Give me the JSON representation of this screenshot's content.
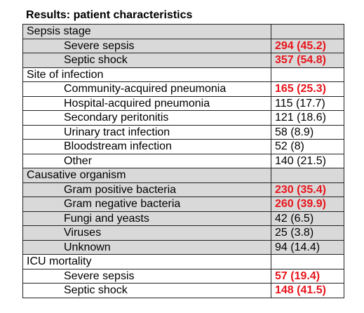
{
  "title": "Results: patient characteristics",
  "colors": {
    "highlight": "#e8141b",
    "shade": "#d9d9d9"
  },
  "sections": [
    {
      "label": "Sepsis stage",
      "rows": [
        {
          "label": "Severe sepsis",
          "value": "294 (45.2)",
          "highlight": true
        },
        {
          "label": "Septic shock",
          "value": "357 (54.8)",
          "highlight": true
        }
      ]
    },
    {
      "label": "Site of infection",
      "rows": [
        {
          "label": "Community-acquired pneumonia",
          "value": "165 (25.3)",
          "highlight": true
        },
        {
          "label": "Hospital-acquired pneumonia",
          "value": "115 (17.7)",
          "highlight": false
        },
        {
          "label": "Secondary peritonitis",
          "value": "121 (18.6)",
          "highlight": false
        },
        {
          "label": "Urinary tract infection",
          "value": "58 (8.9)",
          "highlight": false
        },
        {
          "label": "Bloodstream infection",
          "value": "52 (8)",
          "highlight": false
        },
        {
          "label": "Other",
          "value": "140 (21.5)",
          "highlight": false
        }
      ]
    },
    {
      "label": "Causative organism",
      "rows": [
        {
          "label": "Gram positive bacteria",
          "value": "230 (35.4)",
          "highlight": true
        },
        {
          "label": "Gram negative bacteria",
          "value": "260 (39.9)",
          "highlight": true
        },
        {
          "label": "Fungi and yeasts",
          "value": "42 (6.5)",
          "highlight": false
        },
        {
          "label": "Viruses",
          "value": "25 (3.8)",
          "highlight": false
        },
        {
          "label": "Unknown",
          "value": "94 (14.4)",
          "highlight": false
        }
      ]
    },
    {
      "label": "ICU mortality",
      "rows": [
        {
          "label": "Severe sepsis",
          "value": "57 (19.4)",
          "highlight": true
        },
        {
          "label": "Septic shock",
          "value": "148 (41.5)",
          "highlight": true
        }
      ]
    }
  ]
}
